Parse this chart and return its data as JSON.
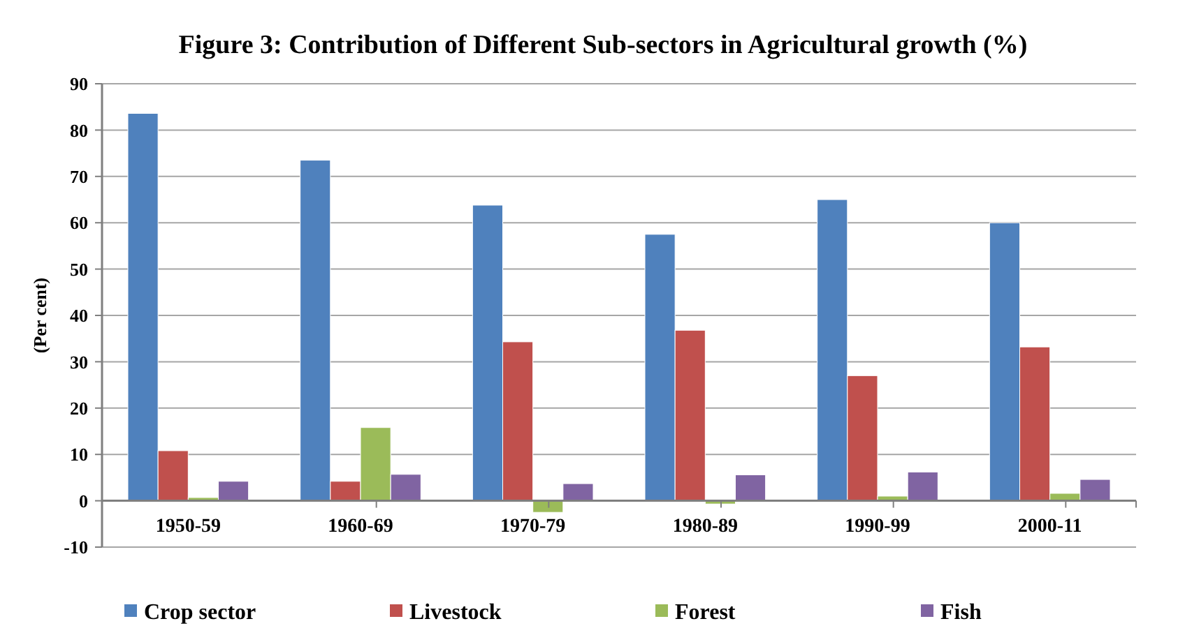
{
  "chart_data": {
    "type": "bar",
    "title": "Figure 3: Contribution of Different Sub-sectors in Agricultural growth (%)",
    "ylabel": "(Per cent)",
    "categories": [
      "1950-59",
      "1960-69",
      "1970-79",
      "1980-89",
      "1990-99",
      "2000-11"
    ],
    "series": [
      {
        "name": "Crop sector",
        "color": "#4f81bd",
        "values": [
          83.6,
          73.5,
          63.8,
          57.5,
          65.0,
          60.0
        ]
      },
      {
        "name": "Livestock",
        "color": "#c0504d",
        "values": [
          10.8,
          4.2,
          34.3,
          36.8,
          27.0,
          33.2
        ]
      },
      {
        "name": "Forest",
        "color": "#9bbb59",
        "values": [
          0.7,
          15.8,
          -2.5,
          -0.7,
          1.0,
          1.6
        ]
      },
      {
        "name": "Fish",
        "color": "#8064a2",
        "values": [
          4.2,
          5.7,
          3.7,
          5.6,
          6.2,
          4.6
        ]
      }
    ],
    "ylim": [
      -10,
      90
    ],
    "yticks": [
      -10,
      0,
      10,
      20,
      30,
      40,
      50,
      60,
      70,
      80,
      90
    ],
    "grid": "y",
    "legend": "bottom"
  }
}
